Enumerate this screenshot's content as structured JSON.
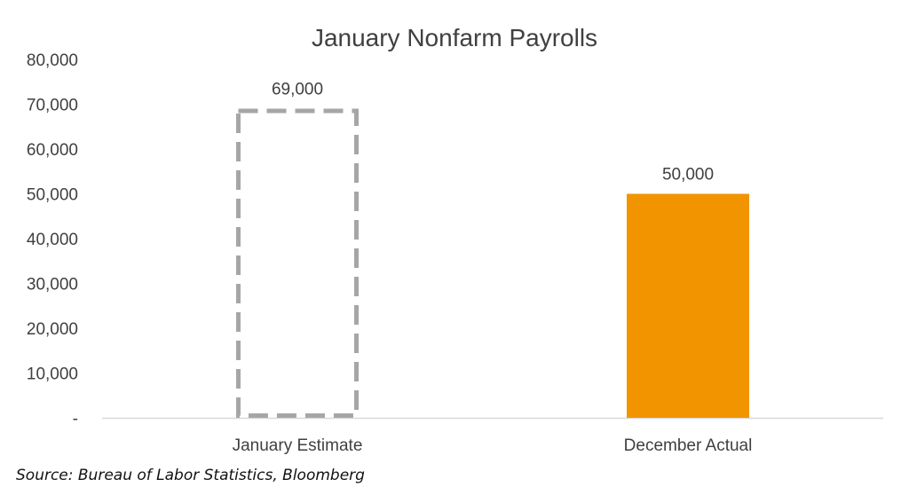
{
  "chart_data": {
    "type": "bar",
    "title": "January Nonfarm Payrolls",
    "xlabel": "",
    "ylabel": "",
    "ylim": [
      0,
      80000
    ],
    "y_ticks": [
      0,
      10000,
      20000,
      30000,
      40000,
      50000,
      60000,
      70000,
      80000
    ],
    "y_tick_labels": [
      "-",
      "10,000",
      "20,000",
      "30,000",
      "40,000",
      "50,000",
      "60,000",
      "70,000",
      "80,000"
    ],
    "categories": [
      "January Estimate",
      "December Actual"
    ],
    "values": [
      69000,
      50000
    ],
    "data_labels": [
      "69,000",
      "50,000"
    ],
    "bar_styles": [
      "dashed-outline",
      "solid"
    ],
    "colors": {
      "estimate_outline": "#a6a6a6",
      "actual_fill": "#f29400",
      "axis_line": "#d9d9d9",
      "text": "#404040"
    },
    "grid": false,
    "legend": "none"
  },
  "source_note": "Source: Bureau of Labor Statistics, Bloomberg"
}
